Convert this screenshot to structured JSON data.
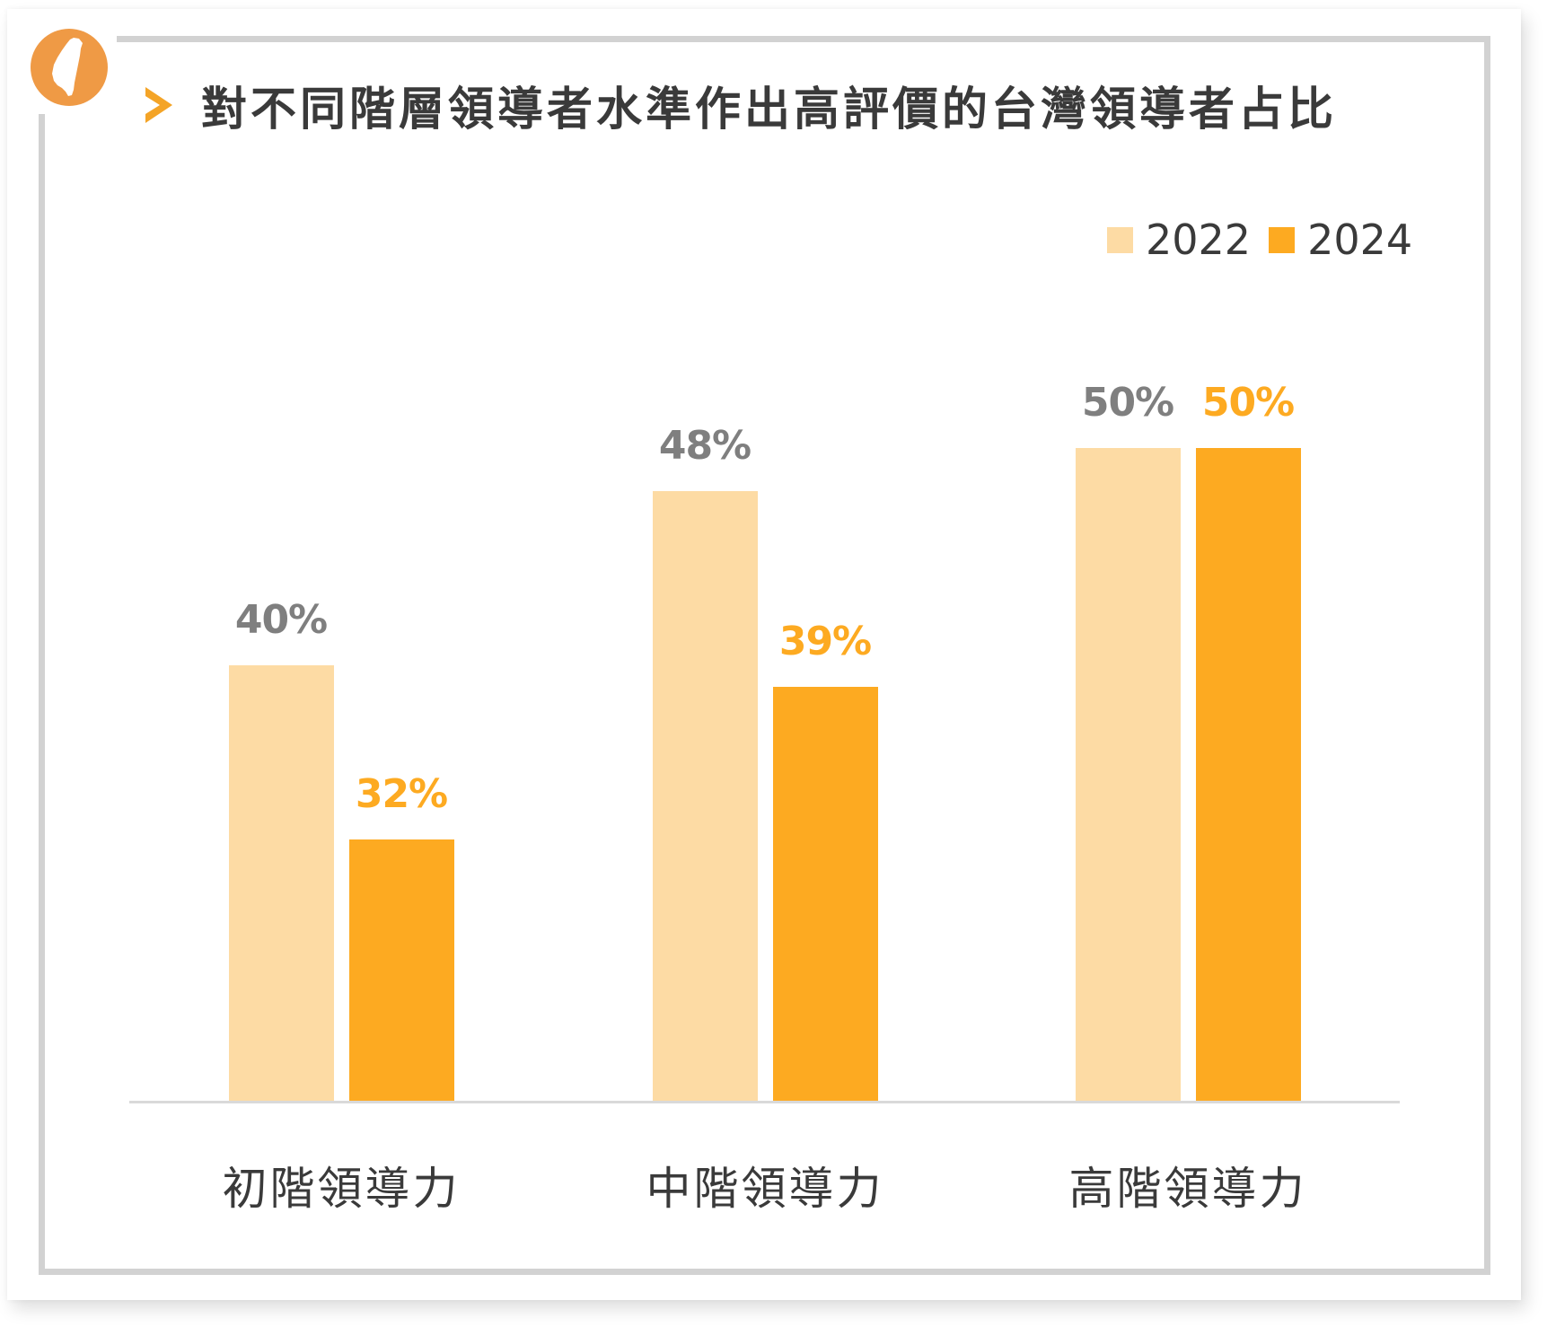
{
  "header": {
    "logo_icon": "taiwan-map-icon",
    "chevron_icon": "chevron-right-icon",
    "title": "對不同階層領導者水準作出高評價的台灣領導者占比"
  },
  "colors": {
    "logo": "#EF9A45",
    "chevron": "#F4A427",
    "series_2022": "#FDDBA4",
    "series_2024": "#FDAA21",
    "label_2022": "#7F7F7F",
    "label_2024": "#FDAA21",
    "axis": "#D9D9D9",
    "frame": "#D2D2D2",
    "text": "#3A3A3A"
  },
  "legend": {
    "items": [
      {
        "label": "2022"
      },
      {
        "label": "2024"
      }
    ]
  },
  "chart_data": {
    "type": "bar",
    "title": "對不同階層領導者水準作出高評價的台灣領導者占比",
    "categories": [
      "初階領導力",
      "中階領導力",
      "高階領導力"
    ],
    "series": [
      {
        "name": "2022",
        "values": [
          40,
          48,
          50
        ],
        "labels": [
          "40%",
          "48%",
          "50%"
        ]
      },
      {
        "name": "2024",
        "values": [
          32,
          39,
          50
        ],
        "labels": [
          "32%",
          "39%",
          "50%"
        ]
      }
    ],
    "xlabel": "",
    "ylabel": "",
    "ylim": [
      20,
      52
    ],
    "grid": false,
    "legend_position": "top-right",
    "value_unit": "%"
  }
}
